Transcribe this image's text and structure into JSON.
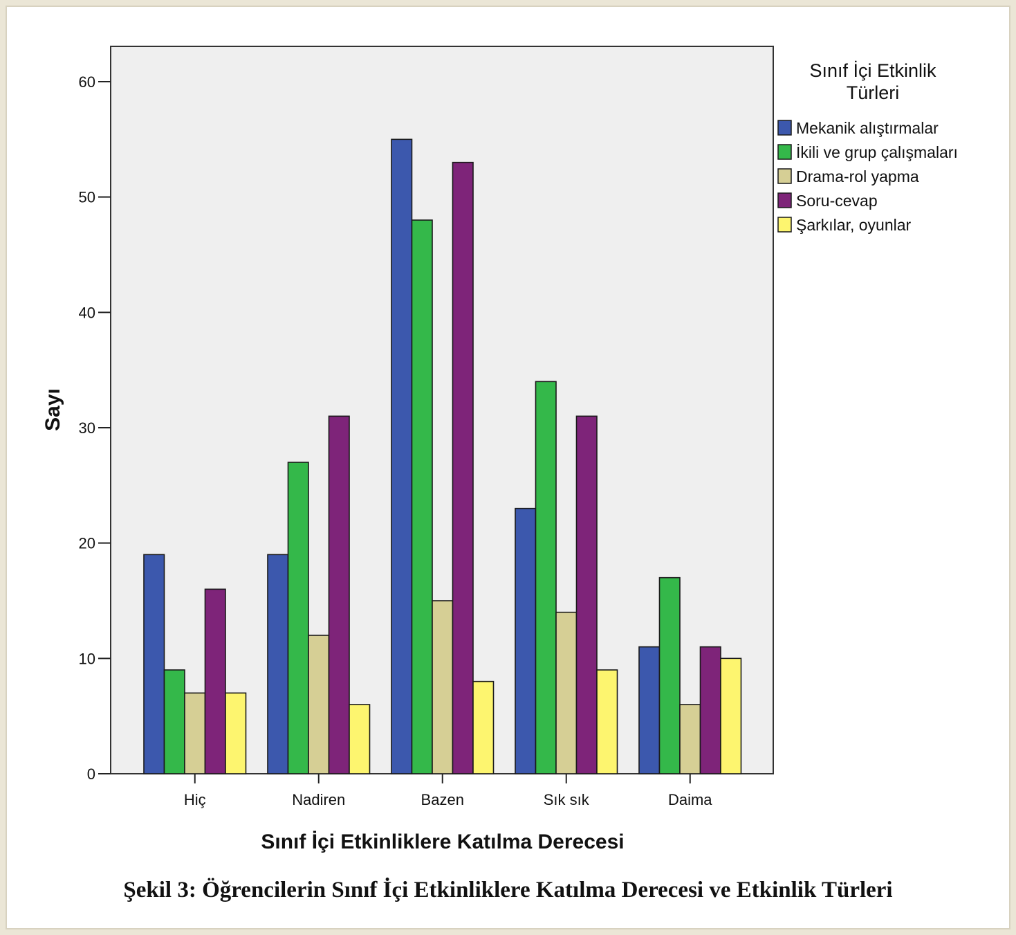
{
  "chart_data": {
    "type": "bar",
    "categories": [
      "Hiç",
      "Nadiren",
      "Bazen",
      "Sık sık",
      "Daima"
    ],
    "series": [
      {
        "name": "Mekanik alıştırmalar",
        "color": "#3c58ad",
        "values": [
          19,
          19,
          55,
          23,
          11
        ]
      },
      {
        "name": "İkili ve grup çalışmaları",
        "color": "#34b84a",
        "values": [
          9,
          27,
          48,
          34,
          17
        ]
      },
      {
        "name": "Drama-rol yapma",
        "color": "#d6cf95",
        "values": [
          7,
          12,
          15,
          14,
          6
        ]
      },
      {
        "name": "Soru-cevap",
        "color": "#7e2479",
        "values": [
          16,
          31,
          53,
          31,
          11
        ]
      },
      {
        "name": "Şarkılar, oyunlar",
        "color": "#fdf56f",
        "values": [
          7,
          6,
          8,
          9,
          10
        ]
      }
    ],
    "xlabel": "Sınıf İçi Etkinliklere Katılma Derecesi",
    "ylabel": "Sayı",
    "ylim": [
      0,
      60
    ],
    "yticks": [
      0,
      10,
      20,
      30,
      40,
      50,
      60
    ],
    "legend_title_lines": [
      "Sınıf İçi Etkinlik",
      "Türleri"
    ],
    "legend_position": "right",
    "grid": false,
    "plot_background": "#efefef"
  },
  "caption": "Şekil 3: Öğrencilerin Sınıf İçi Etkinliklere Katılma Derecesi ve Etkinlik Türleri"
}
